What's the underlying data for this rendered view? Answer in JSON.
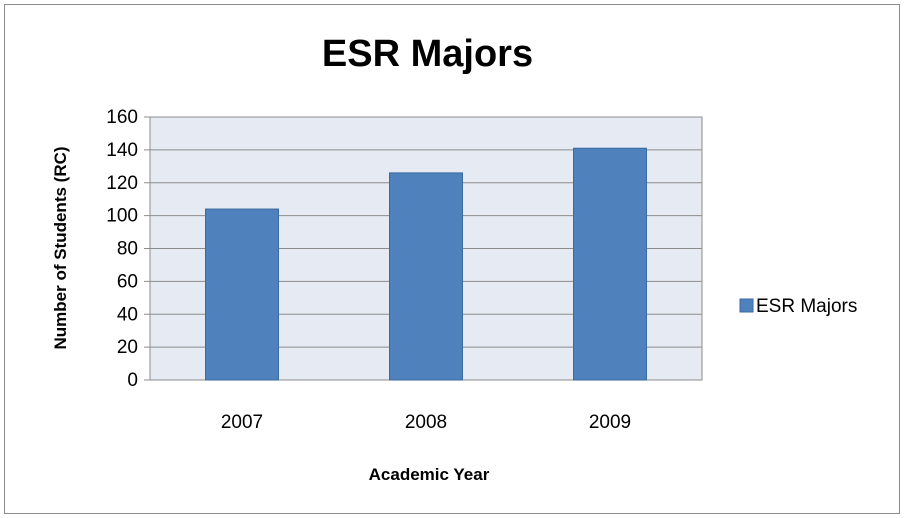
{
  "chart_data": {
    "type": "bar",
    "title": "ESR Majors",
    "xlabel": "Academic Year",
    "ylabel": "Number of Students (RC)",
    "categories": [
      "2007",
      "2008",
      "2009"
    ],
    "series": [
      {
        "name": "ESR Majors",
        "values": [
          104,
          126,
          141
        ],
        "color": "#4f81bd"
      }
    ],
    "ylim": [
      0,
      160
    ],
    "yticks": [
      0,
      20,
      40,
      60,
      80,
      100,
      120,
      140,
      160
    ],
    "grid": true,
    "plot_background": "#e6eaf3",
    "legend_position": "right"
  }
}
